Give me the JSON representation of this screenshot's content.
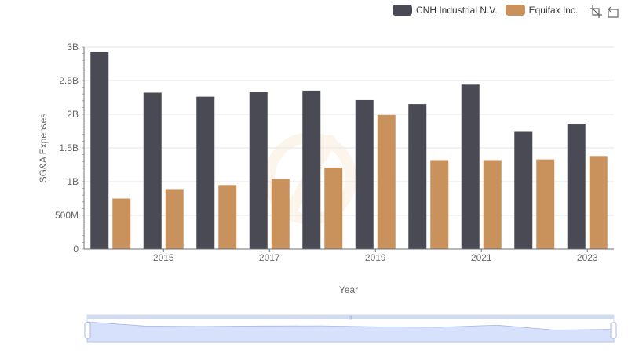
{
  "legend": [
    {
      "name": "CNH Industrial N.V.",
      "color": "#4a4a55"
    },
    {
      "name": "Equifax Inc.",
      "color": "#c9925d"
    }
  ],
  "toolbox": {
    "zoom_icon": "zoom-select-icon",
    "restore_icon": "zoom-restore-icon"
  },
  "chart_data": {
    "type": "bar",
    "xlabel": "Year",
    "ylabel": "SG&A Expenses",
    "categories": [
      "2014",
      "2015",
      "2016",
      "2017",
      "2018",
      "2019",
      "2020",
      "2021",
      "2022",
      "2023"
    ],
    "x_tick_labels": [
      "2015",
      "2017",
      "2019",
      "2021",
      "2023"
    ],
    "y_tick_labels": [
      "0",
      "500M",
      "1B",
      "1.5B",
      "2B",
      "2.5B",
      "3B"
    ],
    "ylim": [
      0,
      3000000000
    ],
    "grid": true,
    "legend_position": "top-right",
    "series": [
      {
        "name": "CNH Industrial N.V.",
        "color": "#4a4a55",
        "values": [
          2930000000,
          2320000000,
          2260000000,
          2330000000,
          2350000000,
          2210000000,
          2150000000,
          2450000000,
          1750000000,
          1860000000
        ]
      },
      {
        "name": "Equifax Inc.",
        "color": "#c9925d",
        "values": [
          750000000,
          890000000,
          950000000,
          1040000000,
          1210000000,
          1990000000,
          1320000000,
          1320000000,
          1330000000,
          1380000000
        ]
      }
    ]
  }
}
